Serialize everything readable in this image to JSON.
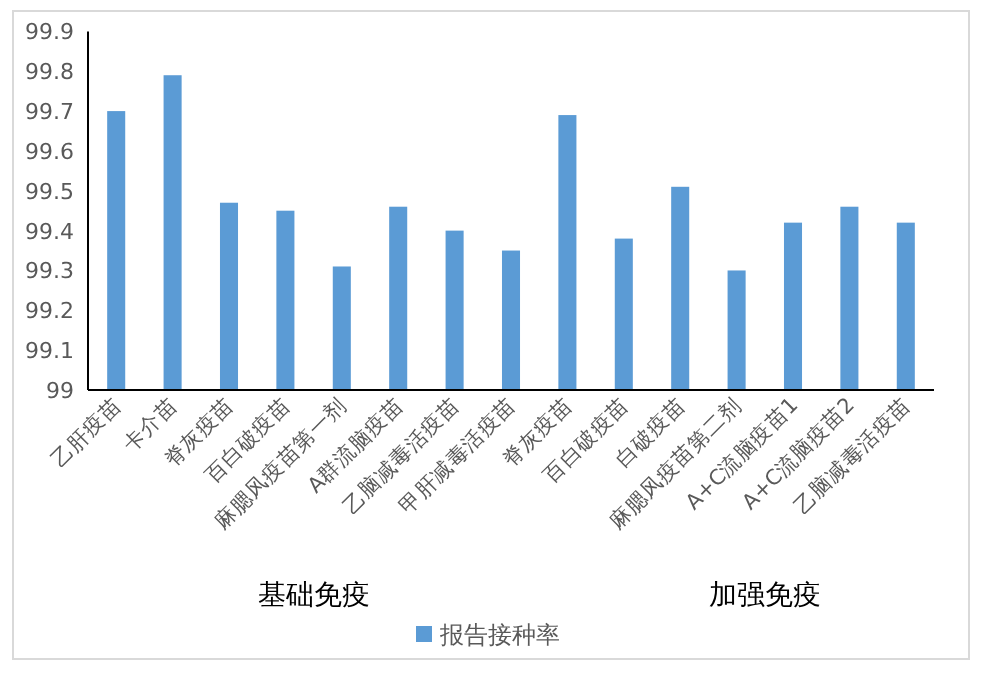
{
  "chart_data": {
    "type": "bar",
    "categories": [
      "乙肝疫苗",
      "卡介苗",
      "脊灰疫苗",
      "百白破疫苗",
      "麻腮风疫苗第一剂",
      "A群流脑疫苗",
      "乙脑减毒活疫苗",
      "甲肝减毒活疫苗",
      "脊灰疫苗",
      "百白破疫苗",
      "白破疫苗",
      "麻腮风疫苗第二剂",
      "A+C流脑疫苗1",
      "A+C流脑疫苗2",
      "乙脑减毒活疫苗"
    ],
    "series": [
      {
        "name": "报告接种率",
        "color": "#5b9bd5",
        "values": [
          99.7,
          99.79,
          99.47,
          99.45,
          99.31,
          99.46,
          99.4,
          99.35,
          99.69,
          99.38,
          99.51,
          99.3,
          99.42,
          99.46,
          99.42
        ]
      }
    ],
    "ylim": [
      99,
      99.9
    ],
    "yticks": [
      99,
      99.1,
      99.2,
      99.3,
      99.4,
      99.5,
      99.6,
      99.7,
      99.8,
      99.9
    ],
    "legend": "bottom",
    "annotations": [
      "基础免疫",
      "加强免疫"
    ]
  }
}
